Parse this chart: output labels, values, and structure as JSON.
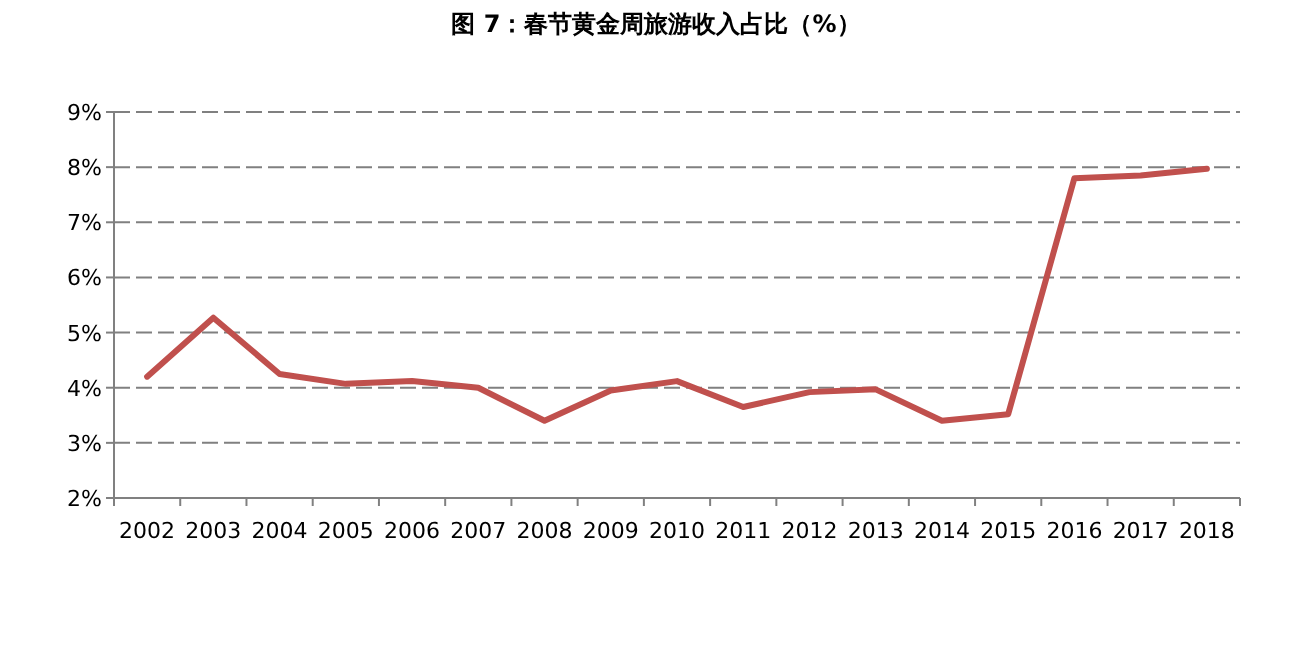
{
  "chart_data": {
    "type": "line",
    "title": "图 7：春节黄金周旅游收入占比（%）",
    "categories": [
      "2002",
      "2003",
      "2004",
      "2005",
      "2006",
      "2007",
      "2008",
      "2009",
      "2010",
      "2011",
      "2012",
      "2013",
      "2014",
      "2015",
      "2016",
      "2017",
      "2018"
    ],
    "series": [
      {
        "color": "#c0504d",
        "values": [
          4.2,
          5.27,
          4.25,
          4.07,
          4.12,
          4.0,
          3.4,
          3.95,
          4.12,
          3.65,
          3.92,
          3.97,
          3.4,
          3.52,
          7.8,
          7.85,
          7.97
        ]
      }
    ],
    "ylim": [
      2,
      9
    ],
    "yticks": [
      {
        "value": 2,
        "label": "2%"
      },
      {
        "value": 3,
        "label": "3%"
      },
      {
        "value": 4,
        "label": "4%"
      },
      {
        "value": 5,
        "label": "5%"
      },
      {
        "value": 6,
        "label": "6%"
      },
      {
        "value": 7,
        "label": "7%"
      },
      {
        "value": 8,
        "label": "8%"
      },
      {
        "value": 9,
        "label": "9%"
      }
    ],
    "grid": "y",
    "marker": "none",
    "line_style": "solid"
  }
}
